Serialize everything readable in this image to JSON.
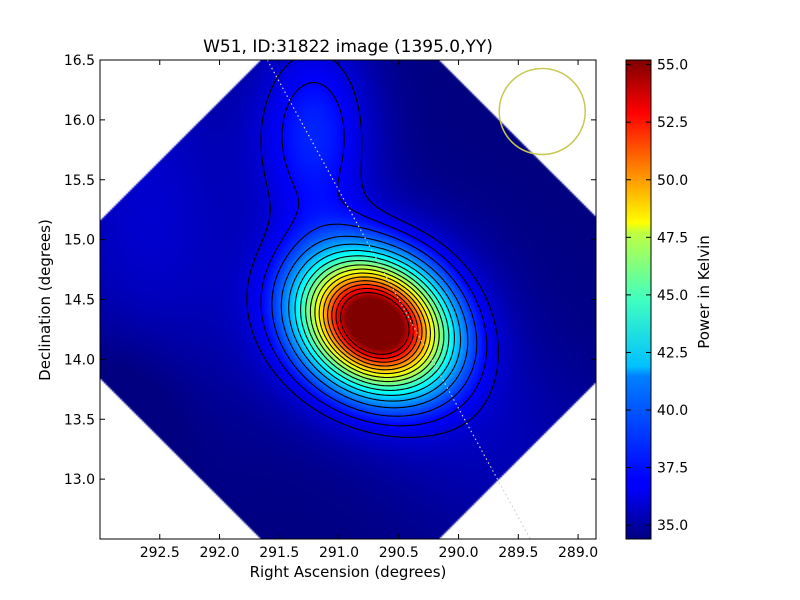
{
  "chart_data": {
    "type": "heatmap",
    "title": "W51, ID:31822 image (1395.0,YY)",
    "xlabel": "Right Ascension (degrees)",
    "ylabel": "Declination (degrees)",
    "xlim": [
      293.0,
      288.85
    ],
    "ylim": [
      12.5,
      16.5
    ],
    "x_ticks": [
      292.5,
      292.0,
      291.5,
      291.0,
      290.5,
      290.0,
      289.5,
      289.0
    ],
    "x_tick_labels": [
      "292.5",
      "292.0",
      "291.5",
      "291.0",
      "290.5",
      "290.0",
      "289.5",
      "289.0"
    ],
    "y_ticks": [
      13.0,
      13.5,
      14.0,
      14.5,
      15.0,
      15.5,
      16.0,
      16.5
    ],
    "y_tick_labels": [
      "13.0",
      "13.5",
      "14.0",
      "14.5",
      "15.0",
      "15.5",
      "16.0",
      "16.5"
    ],
    "colorbar": {
      "label": "Power in Kelvin",
      "range": [
        34.4,
        55.2
      ],
      "ticks": [
        35.0,
        37.5,
        40.0,
        42.5,
        45.0,
        47.5,
        50.0,
        52.5,
        55.0
      ],
      "tick_labels": [
        "35.0",
        "37.5",
        "40.0",
        "42.5",
        "45.0",
        "47.5",
        "50.0",
        "52.5",
        "55.0"
      ],
      "colormap": "jet"
    },
    "peak": {
      "ra": 290.7,
      "dec": 14.3,
      "value": 55.0
    },
    "beam_circle": {
      "ra": 289.3,
      "dec": 16.07,
      "radius_deg": 0.36,
      "color": "#c8c850"
    },
    "galactic_plane_line": [
      [
        291.6,
        16.5
      ],
      [
        289.4,
        12.5
      ]
    ],
    "contour_levels": [
      36.2,
      37.0,
      38.0,
      39.2,
      40.4,
      41.6,
      42.8,
      44.0,
      45.2,
      46.4,
      47.6,
      48.8,
      50.0,
      51.2,
      52.4,
      53.6
    ]
  }
}
